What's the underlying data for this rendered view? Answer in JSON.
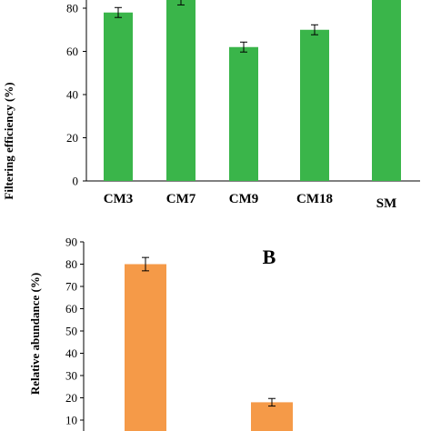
{
  "chart_data": [
    {
      "type": "bar",
      "ylabel": "Filtering efficiency (%)",
      "categories": [
        "CM3",
        "CM7",
        "CM9",
        "CM18",
        "SM"
      ],
      "values": [
        78,
        84,
        62,
        70,
        88
      ],
      "errors": [
        2.3,
        2.5,
        2.3,
        2.3,
        2.5
      ],
      "yticks": [
        "0",
        "20",
        "40",
        "60",
        "80"
      ],
      "ylim": [
        0,
        85
      ],
      "color": "#3ab54a"
    },
    {
      "type": "bar",
      "panel_label": "B",
      "ylabel": "Relative abundance (%)",
      "values": [
        80,
        18
      ],
      "errors": [
        3,
        1.7
      ],
      "yticks": [
        "10",
        "20",
        "30",
        "40",
        "50",
        "60",
        "70",
        "80",
        "90"
      ],
      "ylim": [
        10,
        90
      ],
      "color": "#f59a48"
    }
  ]
}
